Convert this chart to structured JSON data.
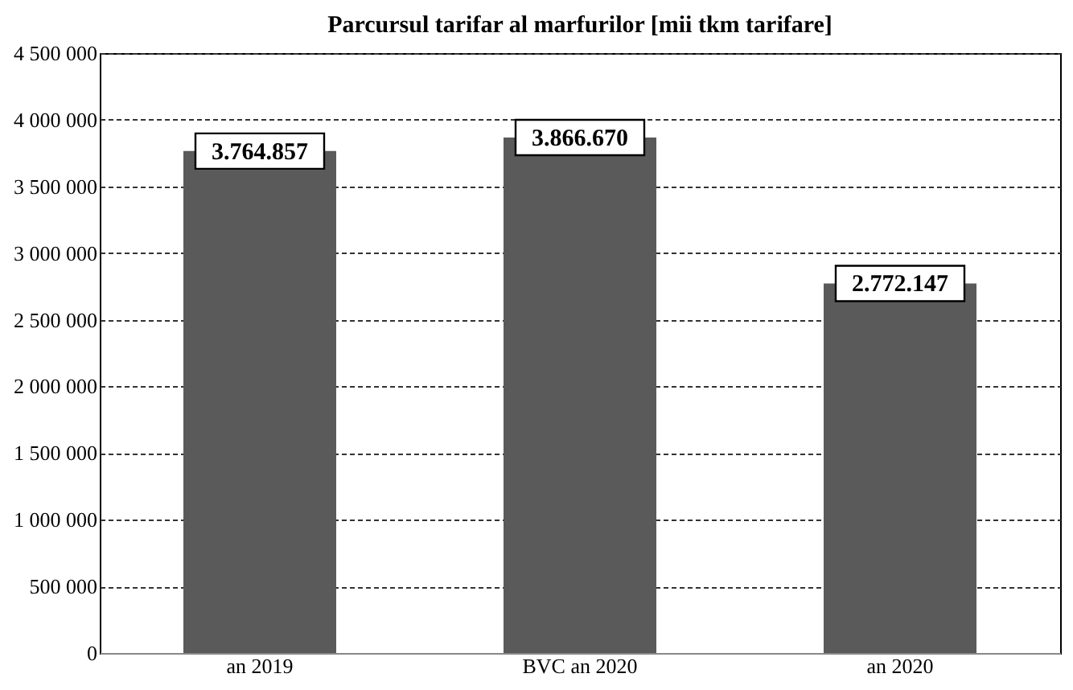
{
  "chart_data": {
    "type": "bar",
    "title": "Parcursul tarifar al marfurilor [mii tkm tarifare]",
    "categories": [
      "an 2019",
      "BVC an 2020",
      "an 2020"
    ],
    "values": [
      3764857,
      3866670,
      2772147
    ],
    "value_labels": [
      "3.764.857",
      "3.866.670",
      "2.772.147"
    ],
    "color": "#5a5a5a",
    "ylim": [
      0,
      4500000
    ],
    "yticks": [
      0,
      {
        "value": 500000,
        "label": "500 000"
      },
      {
        "value": 1000000,
        "label": "1 000 000"
      },
      {
        "value": 1500000,
        "label": "1 500 000"
      },
      {
        "value": 2000000,
        "label": "2 000 000"
      },
      {
        "value": 2500000,
        "label": "2 500 000"
      },
      {
        "value": 3000000,
        "label": "3 000 000"
      },
      {
        "value": 3500000,
        "label": "3 500 000"
      },
      {
        "value": 4000000,
        "label": "4 000 000"
      },
      {
        "value": 4500000,
        "label": "4 500 000"
      }
    ],
    "grid": "y"
  }
}
